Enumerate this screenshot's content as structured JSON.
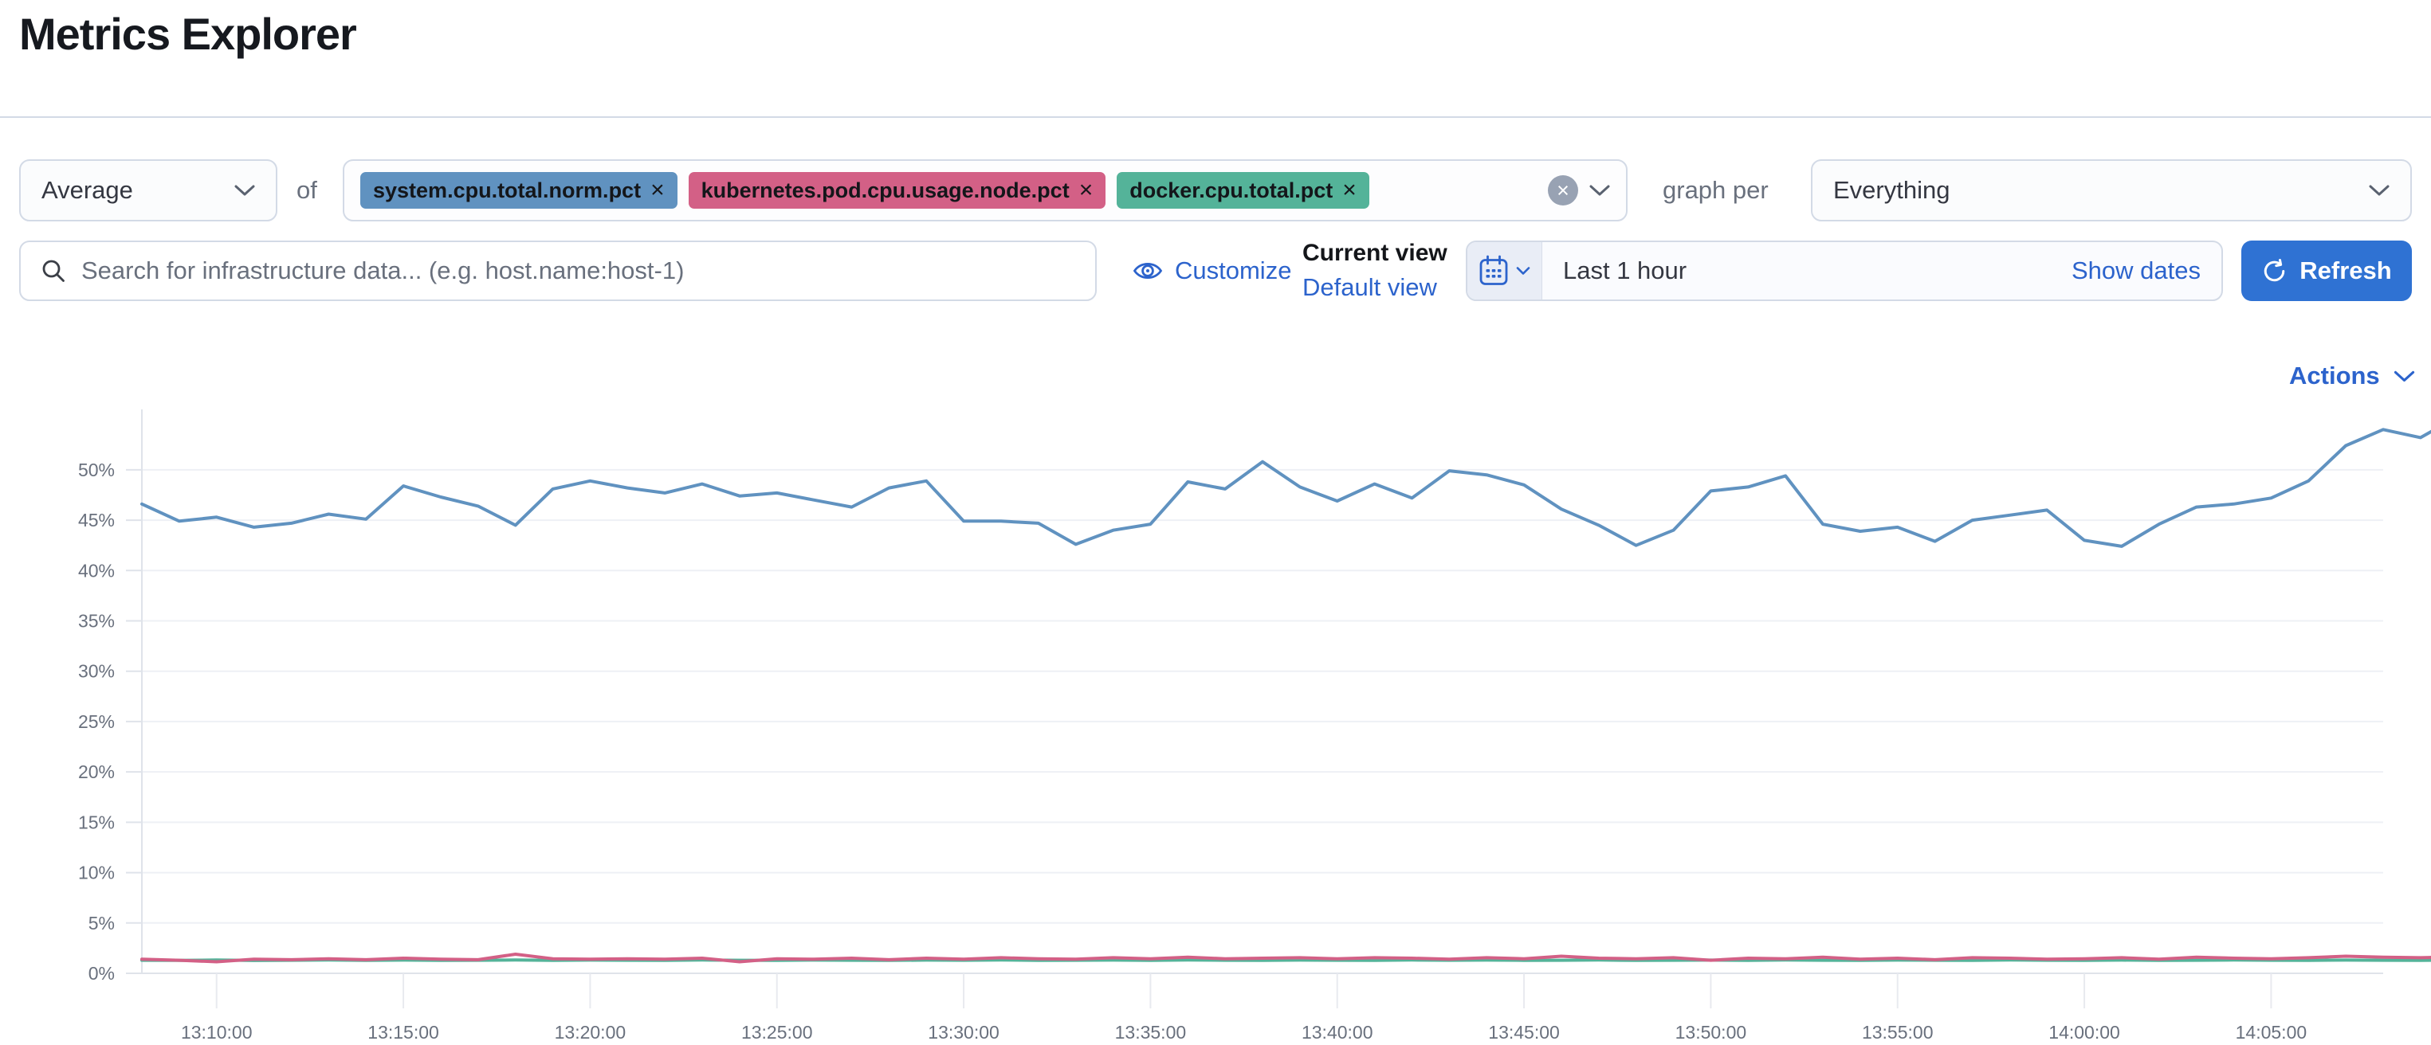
{
  "page": {
    "title": "Metrics Explorer"
  },
  "toolbar": {
    "aggregation_label": "Average",
    "of_label": "of",
    "metrics": [
      {
        "label": "system.cpu.total.norm.pct",
        "color": "#6092c0"
      },
      {
        "label": "kubernetes.pod.cpu.usage.node.pct",
        "color": "#d36086"
      },
      {
        "label": "docker.cpu.total.pct",
        "color": "#54b399"
      }
    ],
    "remove_tag_glyph": "×",
    "clear_all_glyph": "×",
    "graph_per_label": "graph per",
    "group_by_value": "Everything"
  },
  "search": {
    "placeholder": "Search for infrastructure data... (e.g. host.name:host-1)"
  },
  "view_controls": {
    "customize_label": "Customize",
    "current_view_label": "Current view",
    "default_view_label": "Default view"
  },
  "datepicker": {
    "value": "Last 1 hour",
    "show_dates_label": "Show dates"
  },
  "refresh": {
    "label": "Refresh"
  },
  "actions": {
    "label": "Actions"
  },
  "colors": {
    "primary_blue": "#2f72d3",
    "link_blue": "#2c63cc",
    "border_gray": "#d3dae6",
    "text_gray": "#69707d",
    "series_blue": "#6092c0",
    "series_pink": "#d36086",
    "series_green": "#54b399"
  },
  "chart_data": {
    "type": "line",
    "x_domain": [
      "13:08:00",
      "14:08:00"
    ],
    "interval_minutes": 1,
    "x_tick_labels": [
      "13:10:00",
      "13:15:00",
      "13:20:00",
      "13:25:00",
      "13:30:00",
      "13:35:00",
      "13:40:00",
      "13:45:00",
      "13:50:00",
      "13:55:00",
      "14:00:00",
      "14:05:00"
    ],
    "y_ticks": [
      0,
      5,
      10,
      15,
      20,
      25,
      30,
      35,
      40,
      45,
      50
    ],
    "y_tick_suffix": "%",
    "ylim": [
      0,
      56
    ],
    "grid": true,
    "legend": "none",
    "series": [
      {
        "name": "system.cpu.total.norm.pct",
        "color": "#6092c0",
        "values": [
          46.6,
          44.9,
          45.3,
          44.3,
          44.7,
          45.6,
          45.1,
          48.4,
          47.3,
          46.4,
          44.5,
          48.1,
          48.9,
          48.2,
          47.7,
          48.6,
          47.4,
          47.7,
          47.0,
          46.3,
          48.2,
          48.9,
          44.9,
          44.9,
          44.7,
          42.6,
          44.0,
          44.6,
          48.8,
          48.1,
          50.8,
          48.3,
          46.9,
          48.6,
          47.2,
          49.9,
          49.5,
          48.5,
          46.1,
          44.5,
          42.5,
          44.0,
          47.9,
          48.3,
          49.4,
          44.6,
          43.9,
          44.3,
          42.9,
          45.0,
          45.5,
          46.0,
          43.0,
          42.4,
          44.6,
          46.3,
          46.6,
          47.2,
          48.9,
          52.4,
          54.0,
          53.2,
          55.3
        ]
      },
      {
        "name": "kubernetes.pod.cpu.usage.node.pct",
        "color": "#d36086",
        "values": [
          1.4,
          1.3,
          1.15,
          1.4,
          1.35,
          1.45,
          1.35,
          1.5,
          1.4,
          1.35,
          1.9,
          1.45,
          1.4,
          1.45,
          1.4,
          1.5,
          1.15,
          1.45,
          1.4,
          1.5,
          1.35,
          1.5,
          1.4,
          1.55,
          1.45,
          1.4,
          1.55,
          1.45,
          1.6,
          1.45,
          1.5,
          1.55,
          1.45,
          1.55,
          1.5,
          1.4,
          1.55,
          1.45,
          1.7,
          1.5,
          1.45,
          1.55,
          1.3,
          1.5,
          1.45,
          1.6,
          1.4,
          1.5,
          1.35,
          1.55,
          1.5,
          1.4,
          1.45,
          1.55,
          1.4,
          1.6,
          1.5,
          1.45,
          1.55,
          1.7,
          1.6,
          1.55,
          1.65
        ]
      },
      {
        "name": "docker.cpu.total.pct",
        "color": "#54b399",
        "values": [
          1.3,
          1.28,
          1.32,
          1.27,
          1.3,
          1.33,
          1.29,
          1.31,
          1.28,
          1.3,
          1.32,
          1.29,
          1.31,
          1.3,
          1.28,
          1.32,
          1.3,
          1.29,
          1.31,
          1.3,
          1.28,
          1.31,
          1.3,
          1.32,
          1.29,
          1.3,
          1.31,
          1.28,
          1.32,
          1.3,
          1.29,
          1.31,
          1.3,
          1.28,
          1.32,
          1.3,
          1.31,
          1.29,
          1.3,
          1.32,
          1.28,
          1.3,
          1.31,
          1.29,
          1.32,
          1.3,
          1.28,
          1.31,
          1.3,
          1.29,
          1.32,
          1.3,
          1.28,
          1.31,
          1.29,
          1.3,
          1.32,
          1.3,
          1.29,
          1.31,
          1.3,
          1.29,
          1.31
        ]
      }
    ]
  }
}
